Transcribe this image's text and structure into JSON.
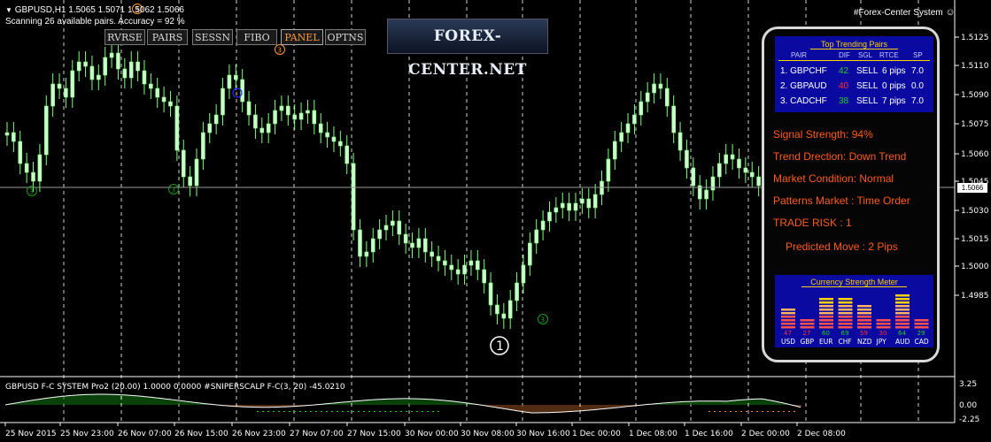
{
  "header": {
    "symbol_line": "GBPUSD,H1  1.5065 1.5071 1.5062 1.5066",
    "scan_line": "Scanning 26 available pairs. Accuracy = 92 %"
  },
  "toolbar": {
    "buttons": [
      "RVRSE",
      "PAIRS",
      "SESSN",
      "FIBO",
      "PANEL",
      "OPTNS"
    ],
    "active": "PANEL"
  },
  "logo_text": "FOREX-CENTER.NET",
  "ea_title": "#Forex-Center System",
  "panel": {
    "trending": {
      "title": "Top Trending Pairs",
      "columns": [
        "PAIR",
        "DIF",
        "SGL",
        "RTCE",
        "SP"
      ],
      "rows": [
        {
          "pair": "1. GBPCHF",
          "dif": "42",
          "sgl": "SELL",
          "rtce": "6 pips",
          "sp": "7.0",
          "dif_color": "#22cc22"
        },
        {
          "pair": "2. GBPAUD",
          "dif": "40",
          "sgl": "SELL",
          "rtce": "0 pips",
          "sp": "0.0",
          "dif_color": "#ff3030"
        },
        {
          "pair": "3. CADCHF",
          "dif": "38",
          "sgl": "SELL",
          "rtce": "7 pips",
          "sp": "7.0",
          "dif_color": "#22cc22"
        }
      ]
    },
    "info": {
      "signal_strength": "Signal Strength: 94%",
      "trend_direction": "Trend Drection: Down Trend",
      "market_condition": "Market Condition: Normal",
      "patterns_market": "Patterns Market : Time Order",
      "trade_risk": "TRADE RISK : 1",
      "predicted_move": "Predicted Move : 2 Pips"
    },
    "meter": {
      "title": "Currency Strength Meter",
      "currencies": [
        {
          "code": "USD",
          "value": "47",
          "color": "#ff3030"
        },
        {
          "code": "GBP",
          "value": "27",
          "color": "#ff3030"
        },
        {
          "code": "EUR",
          "value": "60",
          "color": "#22cc22"
        },
        {
          "code": "CHF",
          "value": "69",
          "color": "#22cc22"
        },
        {
          "code": "NZD",
          "value": "59",
          "color": "#ff3030"
        },
        {
          "code": "JPY",
          "value": "30",
          "color": "#ff3030"
        },
        {
          "code": "AUD",
          "value": "64",
          "color": "#22cc22"
        },
        {
          "code": "CAD",
          "value": "29",
          "color": "#22cc22"
        }
      ]
    }
  },
  "price_axis": [
    "1.5125",
    "1.5110",
    "1.5090",
    "1.5075",
    "1.5060",
    "1.5045",
    "1.5030",
    "1.5015",
    "1.5000",
    "1.4985"
  ],
  "current_price": "1.5066",
  "indicator": {
    "label": "GBPUSD  F-C SYSTEM Pro2 (20.00) 1.0000 0.0000  #SNIPERSCALP F-C(3, 20) -45.0210",
    "axis": [
      "3.25",
      "0.00",
      "-2.25"
    ]
  },
  "time_axis": [
    "25 Nov 2015",
    "25 Nov 23:00",
    "26 Nov 07:00",
    "26 Nov 15:00",
    "26 Nov 23:00",
    "27 Nov 07:00",
    "27 Nov 15:00",
    "30 Nov 00:00",
    "30 Nov 08:00",
    "30 Nov 16:00",
    "1 Dec 00:00",
    "1 Dec 08:00",
    "1 Dec 16:00",
    "2 Dec 00:00",
    "2 Dec 08:00"
  ],
  "markers": [
    "3",
    "3",
    "3",
    "3",
    "3",
    "1"
  ],
  "colors": {
    "candle": "#ccffcc",
    "panel_blue": "#0a0aa0",
    "info_text": "#ff5a1a"
  }
}
